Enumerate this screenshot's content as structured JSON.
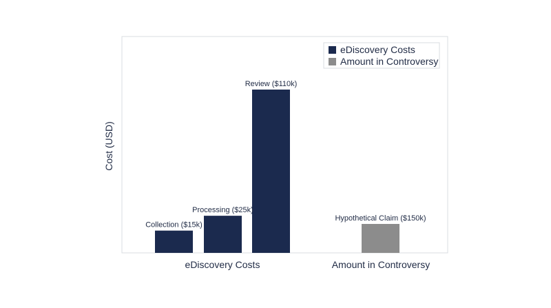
{
  "chart_data": {
    "type": "bar",
    "ylabel": "Cost (USD)",
    "categories": [
      "eDiscovery Costs",
      "Amount in Controversy"
    ],
    "groups": [
      {
        "category": "eDiscovery Costs",
        "series": "eDiscovery Costs",
        "bars": [
          {
            "label": "Collection ($15k)",
            "value": 15000
          },
          {
            "label": "Processing ($25k)",
            "value": 25000
          },
          {
            "label": "Review ($110k)",
            "value": 110000
          }
        ]
      },
      {
        "category": "Amount in Controversy",
        "series": "Amount in Controversy",
        "bars": [
          {
            "label": "Hypothetical Claim ($150k)",
            "value": 150000
          }
        ]
      }
    ],
    "legend": {
      "placement": "top-right",
      "items": [
        {
          "name": "eDiscovery Costs",
          "color": "#1b2a4e"
        },
        {
          "name": "Amount in Controversy",
          "color": "#8c8c8c"
        }
      ]
    },
    "grid": false,
    "y_ticks_shown": false
  }
}
